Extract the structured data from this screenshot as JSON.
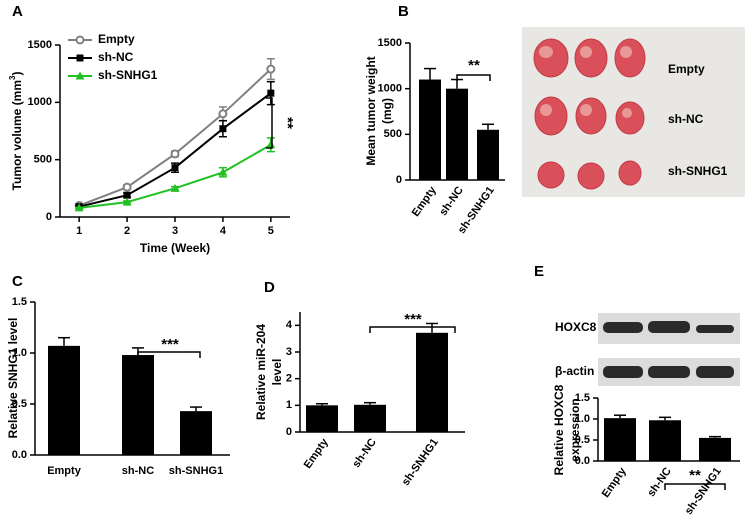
{
  "chart_data": [
    {
      "type": "line",
      "panel": "A",
      "ylabel": "Tumor volume (mm",
      "ylabel_sup": "3",
      "ylabel_end": ")",
      "xlabel": "Time (Week)",
      "x": [
        1,
        2,
        3,
        4,
        5
      ],
      "xlim": [
        0.6,
        5.4
      ],
      "xticks": [
        1,
        2,
        3,
        4,
        5
      ],
      "ylim": [
        0,
        1500
      ],
      "yticks": [
        0,
        500,
        1000,
        1500
      ],
      "series": [
        {
          "name": "Empty",
          "color": "#808080",
          "values": [
            100,
            260,
            550,
            900,
            1290
          ],
          "errors": [
            10,
            20,
            25,
            60,
            90
          ]
        },
        {
          "name": "sh-NC",
          "color": "#000000",
          "values": [
            90,
            190,
            430,
            770,
            1080
          ],
          "errors": [
            10,
            20,
            40,
            70,
            100
          ]
        },
        {
          "name": "sh-SNHG1",
          "color": "#22c022",
          "values": [
            80,
            130,
            250,
            390,
            630
          ],
          "errors": [
            5,
            10,
            15,
            40,
            60
          ]
        }
      ],
      "annotation": "**"
    },
    {
      "type": "bar",
      "panel": "B",
      "ylabel": [
        "Mean tumor weight",
        "(mg)"
      ],
      "categories": [
        "Empty",
        "sh-NC",
        "sh-SNHG1"
      ],
      "values": [
        1100,
        1000,
        550
      ],
      "errors": [
        120,
        100,
        60
      ],
      "color": "#000000",
      "ylim": [
        0,
        1500
      ],
      "yticks": [
        0,
        500,
        1000,
        1500
      ],
      "annotation": "**",
      "image_labels": [
        "Empty",
        "sh-NC",
        "sh-SNHG1"
      ]
    },
    {
      "type": "bar",
      "panel": "C",
      "ylabel": [
        "Relative SNHG1 level"
      ],
      "categories": [
        "Empty",
        "sh-NC",
        "sh-SNHG1"
      ],
      "values": [
        1.07,
        0.98,
        0.43
      ],
      "errors": [
        0.08,
        0.07,
        0.04
      ],
      "color": "#000000",
      "ylim": [
        0,
        1.5
      ],
      "yticks": [
        {
          "value": 0,
          "label": "0.0"
        },
        0.5,
        {
          "value": 1,
          "label": "1.0"
        },
        1.5
      ],
      "annotation": "***"
    },
    {
      "type": "bar",
      "panel": "D",
      "ylabel": [
        "Relative miR-204",
        "level"
      ],
      "categories": [
        "Empty",
        "sh-NC",
        "sh-SNHG1"
      ],
      "values": [
        1.0,
        1.02,
        3.72
      ],
      "errors": [
        0.06,
        0.08,
        0.35
      ],
      "color": "#000000",
      "ylim": [
        0,
        4.5
      ],
      "yticks": [
        0,
        1,
        2,
        3,
        4
      ],
      "annotation": "***"
    },
    {
      "type": "bar",
      "panel": "E",
      "ylabel": [
        "Relative HOXC8",
        "expression"
      ],
      "categories": [
        "Empty",
        "sh-NC",
        "sh-SNHG1"
      ],
      "values": [
        1.02,
        0.97,
        0.55
      ],
      "errors": [
        0.07,
        0.07,
        0.03
      ],
      "color": "#000000",
      "ylim": [
        0,
        1.5
      ],
      "yticks": [
        {
          "value": 0,
          "label": "0.0"
        },
        0.5,
        {
          "value": 1,
          "label": "1.0"
        },
        1.5
      ],
      "annotation": "**",
      "blot_labels": [
        "HOXC8",
        "β-actin"
      ]
    }
  ]
}
